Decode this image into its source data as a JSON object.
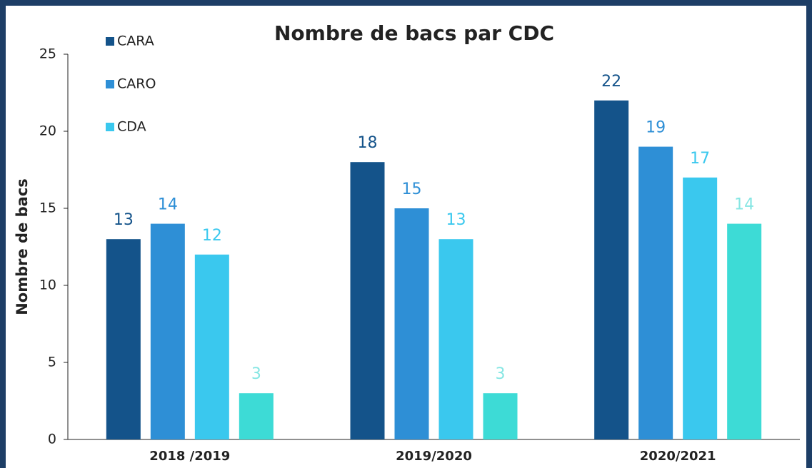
{
  "chart_data": {
    "type": "bar",
    "title": "Nombre de bacs par CDC",
    "ylabel": "Nombre de bacs",
    "categories": [
      "2018 /2019",
      "2019/2020",
      "2020/2021"
    ],
    "series": [
      {
        "name": "CARA",
        "color": "#14538a",
        "label_color": "#14538a",
        "values": [
          13,
          18,
          22
        ]
      },
      {
        "name": "CARO",
        "color": "#2e8fd6",
        "label_color": "#2e8fd6",
        "values": [
          14,
          15,
          19
        ]
      },
      {
        "name": "CDA",
        "color": "#3ac8ee",
        "label_color": "#3ac8ee",
        "values": [
          12,
          13,
          17
        ]
      },
      {
        "name": null,
        "color": "#3ddbd6",
        "label_color": "#86e6e3",
        "values": [
          3,
          3,
          14
        ]
      }
    ],
    "ylim": [
      0,
      25
    ],
    "yticks": [
      0,
      5,
      10,
      15,
      20,
      25
    ],
    "grid": false,
    "legend": "upper left"
  }
}
